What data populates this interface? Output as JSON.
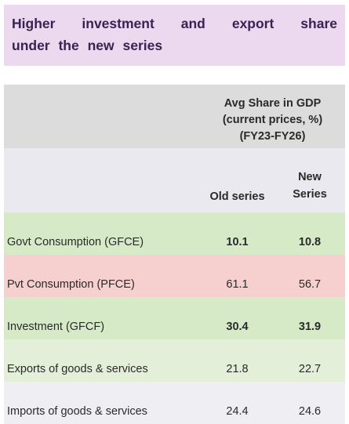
{
  "title": {
    "lines": [
      "Higher investment and export share",
      "under the new series"
    ]
  },
  "table": {
    "header": {
      "span_lines": [
        "Avg Share in GDP",
        "(current prices, %)",
        "(FY23-FY26)"
      ],
      "columns": [
        "Old series",
        [
          "New",
          "Series"
        ]
      ]
    },
    "rows": [
      [
        "Govt Consumption (GFCE)",
        10.1,
        10.8
      ],
      [
        "Pvt Consumption (PFCE)",
        61.1,
        56.7
      ],
      [
        "Investment (GFCF)",
        30.4,
        31.9
      ],
      [
        "Exports of goods & services",
        21.8,
        22.7
      ],
      [
        "Imports of goods & services",
        24.4,
        24.6
      ]
    ]
  }
}
